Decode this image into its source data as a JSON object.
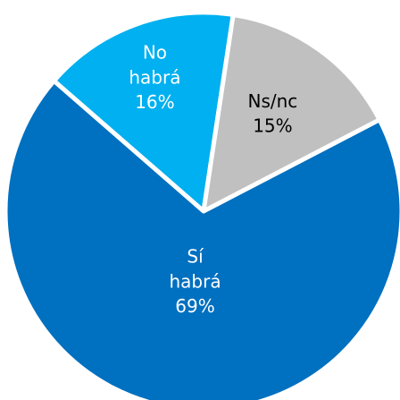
{
  "chart_data": {
    "type": "pie",
    "categories": [
      "No habrá",
      "Ns/nc",
      "Sí habrá"
    ],
    "values": [
      16,
      15,
      69
    ],
    "value_labels": [
      "16%",
      "15%",
      "69%"
    ],
    "colors": [
      "#00b0f0",
      "#c0c0c0",
      "#0070c0"
    ]
  }
}
